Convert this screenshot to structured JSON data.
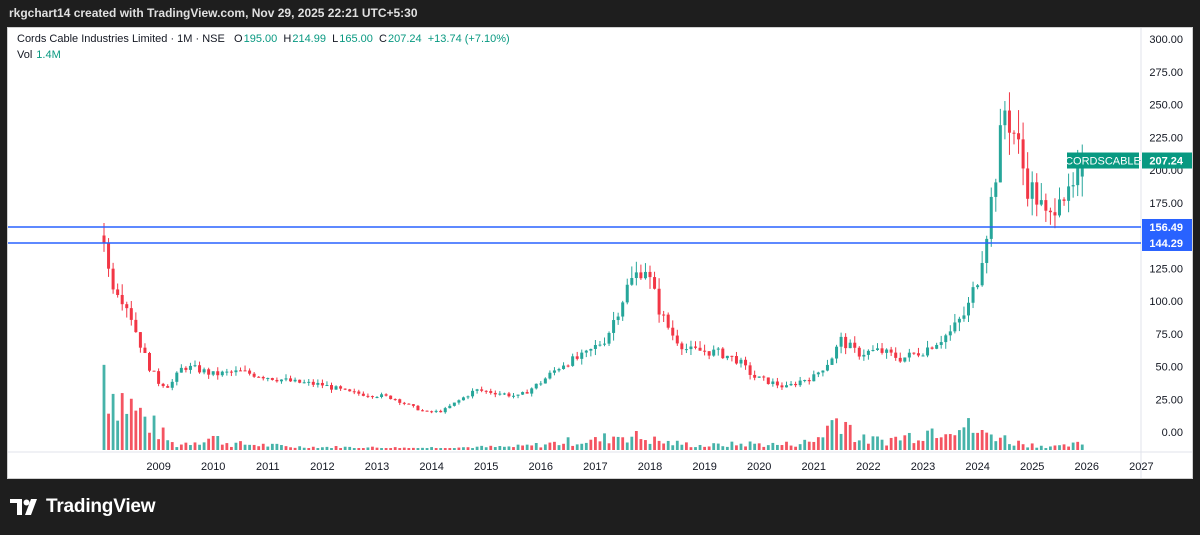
{
  "header": {
    "caption": "rkgchart14 created with TradingView.com, Nov 29, 2025 22:21 UTC+5:30"
  },
  "legend": {
    "symbol": "Cords Cable Industries Limited · 1M · NSE",
    "o_label": "O",
    "o": "195.00",
    "h_label": "H",
    "h": "214.99",
    "l_label": "L",
    "l": "165.00",
    "c_label": "C",
    "c": "207.24",
    "change": "+13.74 (+7.10%)",
    "vol_label": "Vol",
    "vol": "1.4M"
  },
  "brand": {
    "name": "TradingView",
    "logo_icon": "tradingview-logo-icon"
  },
  "colors": {
    "up": "#26a69a",
    "down": "#f23645",
    "line": "#2962ff",
    "tag": "#089981"
  },
  "chart_data": {
    "type": "candlestick",
    "symbol": "CORDSCABLE",
    "x_ticks": [
      "2009",
      "2010",
      "2011",
      "2012",
      "2013",
      "2014",
      "2015",
      "2016",
      "2017",
      "2018",
      "2019",
      "2020",
      "2021",
      "2022",
      "2023",
      "2024",
      "2025",
      "2026",
      "2027"
    ],
    "y_ticks": [
      "300.00",
      "275.00",
      "250.00",
      "225.00",
      "200.00",
      "175.00",
      "150.00",
      "125.00",
      "100.00",
      "75.00",
      "50.00",
      "25.00",
      "0.00"
    ],
    "y_range": [
      -20,
      300
    ],
    "hlines": [
      {
        "value": 156.49,
        "label": "156.49"
      },
      {
        "value": 144.29,
        "label": "144.29"
      }
    ],
    "last_price": {
      "symbol": "CORDSCABLE",
      "label": "207.24",
      "value": 207.24
    },
    "price_points": [
      [
        2008.0,
        150
      ],
      [
        2008.1,
        118
      ],
      [
        2008.25,
        110
      ],
      [
        2008.45,
        95
      ],
      [
        2008.6,
        75
      ],
      [
        2008.8,
        52
      ],
      [
        2009.0,
        38
      ],
      [
        2009.2,
        35
      ],
      [
        2009.45,
        50
      ],
      [
        2009.7,
        48
      ],
      [
        2010.0,
        44
      ],
      [
        2010.5,
        46
      ],
      [
        2011.0,
        42
      ],
      [
        2011.5,
        38
      ],
      [
        2012.0,
        36
      ],
      [
        2012.5,
        30
      ],
      [
        2013.0,
        28
      ],
      [
        2013.3,
        26
      ],
      [
        2013.6,
        20
      ],
      [
        2013.9,
        15
      ],
      [
        2014.2,
        16
      ],
      [
        2014.5,
        24
      ],
      [
        2014.8,
        32
      ],
      [
        2015.2,
        30
      ],
      [
        2015.6,
        27
      ],
      [
        2016.0,
        38
      ],
      [
        2016.4,
        52
      ],
      [
        2016.8,
        58
      ],
      [
        2017.2,
        72
      ],
      [
        2017.6,
        112
      ],
      [
        2017.9,
        128
      ],
      [
        2018.0,
        115
      ],
      [
        2018.2,
        90
      ],
      [
        2018.4,
        75
      ],
      [
        2018.7,
        62
      ],
      [
        2019.0,
        62
      ],
      [
        2019.3,
        60
      ],
      [
        2019.6,
        55
      ],
      [
        2019.9,
        42
      ],
      [
        2020.2,
        38
      ],
      [
        2020.5,
        34
      ],
      [
        2020.8,
        40
      ],
      [
        2021.0,
        42
      ],
      [
        2021.3,
        55
      ],
      [
        2021.5,
        70
      ],
      [
        2021.8,
        60
      ],
      [
        2022.2,
        62
      ],
      [
        2022.6,
        56
      ],
      [
        2023.0,
        62
      ],
      [
        2023.5,
        76
      ],
      [
        2023.8,
        92
      ],
      [
        2024.0,
        118
      ],
      [
        2024.2,
        162
      ],
      [
        2024.4,
        218
      ],
      [
        2024.5,
        246
      ],
      [
        2024.7,
        225
      ],
      [
        2024.9,
        190
      ],
      [
        2025.1,
        178
      ],
      [
        2025.3,
        158
      ],
      [
        2025.5,
        188
      ],
      [
        2025.7,
        175
      ],
      [
        2025.9,
        207
      ]
    ],
    "volume_points": [
      [
        2008.0,
        65
      ],
      [
        2009.3,
        4
      ],
      [
        2009.6,
        8
      ],
      [
        2010.0,
        12
      ],
      [
        2010.3,
        6
      ],
      [
        2010.8,
        5
      ],
      [
        2011.5,
        3
      ],
      [
        2013.5,
        2
      ],
      [
        2015.5,
        3
      ],
      [
        2016.0,
        5
      ],
      [
        2016.5,
        8
      ],
      [
        2017.0,
        9
      ],
      [
        2017.5,
        15
      ],
      [
        2017.8,
        12
      ],
      [
        2018.3,
        7
      ],
      [
        2019.0,
        4
      ],
      [
        2019.8,
        6
      ],
      [
        2020.4,
        5
      ],
      [
        2021.0,
        8
      ],
      [
        2021.5,
        35
      ],
      [
        2021.8,
        10
      ],
      [
        2022.3,
        9
      ],
      [
        2022.8,
        14
      ],
      [
        2023.3,
        22
      ],
      [
        2023.5,
        27
      ],
      [
        2023.9,
        20
      ],
      [
        2024.1,
        14
      ],
      [
        2024.3,
        16
      ],
      [
        2024.6,
        8
      ],
      [
        2025.0,
        5
      ],
      [
        2025.5,
        3
      ],
      [
        2025.9,
        6
      ]
    ]
  }
}
